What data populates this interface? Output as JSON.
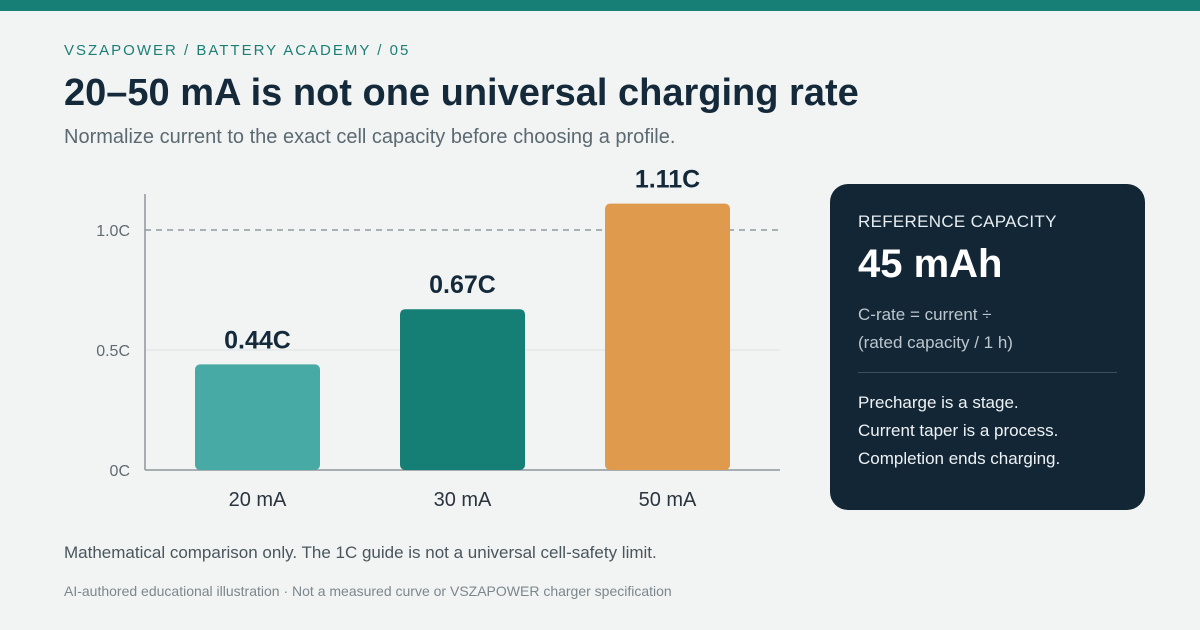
{
  "header": {
    "eyebrow": "VSZAPOWER / BATTERY ACADEMY / 05",
    "title": "20–50 mA is not one universal charging rate",
    "subtitle": "Normalize current to the exact cell capacity before choosing a profile."
  },
  "chart_data": {
    "type": "bar",
    "categories": [
      "20 mA",
      "30 mA",
      "50 mA"
    ],
    "values": [
      0.44,
      0.67,
      1.11
    ],
    "value_labels": [
      "0.44C",
      "0.67C",
      "1.11C"
    ],
    "colors": [
      "#48aaa4",
      "#157f75",
      "#df9a4e"
    ],
    "ylim": [
      0,
      1.15
    ],
    "yticks": [
      {
        "value": 0,
        "label": "0C"
      },
      {
        "value": 0.5,
        "label": "0.5C"
      },
      {
        "value": 1.0,
        "label": "1.0C"
      }
    ],
    "reference_line": {
      "value": 1.0,
      "style": "dashed"
    },
    "grid": true
  },
  "card": {
    "label": "REFERENCE CAPACITY",
    "value": "45 mAh",
    "formula_line1": "C-rate = current ÷",
    "formula_line2": "(rated capacity / 1 h)",
    "notes": [
      "Precharge is a stage.",
      "Current taper is a process.",
      "Completion ends charging."
    ]
  },
  "footer": {
    "note": "Mathematical comparison only. The 1C guide is not a universal cell-safety limit.",
    "disclaimer": "AI-authored educational illustration · Not a measured curve or VSZAPOWER charger specification"
  },
  "colors": {
    "accent": "#177f75",
    "card_bg": "#132636",
    "background": "#f2f4f3"
  }
}
